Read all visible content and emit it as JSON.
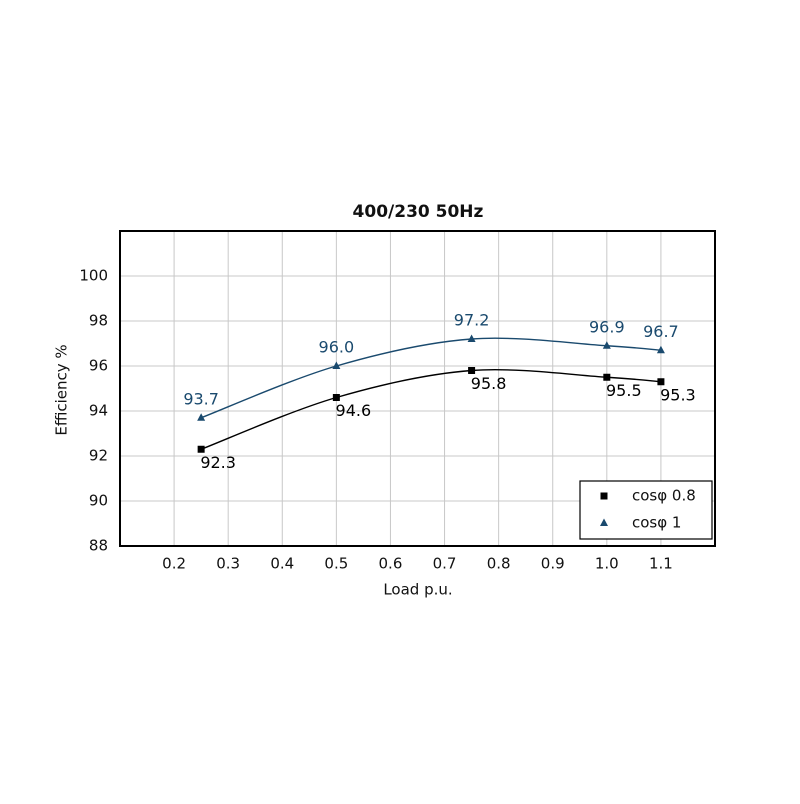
{
  "chart_data": {
    "type": "line",
    "title": "400/230 50Hz",
    "x_label": "Load p.u.",
    "y_label": "Efficiency %",
    "x": [
      0.25,
      0.5,
      0.75,
      1,
      1.1
    ],
    "series": [
      {
        "name": "cosφ 0.8",
        "color": "#000000",
        "marker": "square",
        "values": [
          92.3,
          94.6,
          95.8,
          95.5,
          95.3
        ],
        "value_labels": [
          "92.3",
          "94.6",
          "95.8",
          "95.5",
          "95.3"
        ]
      },
      {
        "name": "cosφ 1",
        "color": "#1a4a6e",
        "marker": "triangle",
        "values": [
          93.7,
          96.0,
          97.2,
          96.9,
          96.7
        ],
        "value_labels": [
          "93.7",
          "96.0",
          "97.2",
          "96.9",
          "96.7"
        ]
      }
    ],
    "xlim": [
      0.1,
      1.2
    ],
    "xticks": [
      0.2,
      0.3,
      0.4,
      0.5,
      0.6,
      0.7,
      0.8,
      0.9,
      {
        "value": 1,
        "label": "1.0"
      },
      1.1
    ],
    "ylim": [
      88,
      102
    ],
    "yticks": [
      88,
      90,
      92,
      94,
      96,
      98,
      100
    ],
    "grid": true,
    "legend": "lower right"
  }
}
